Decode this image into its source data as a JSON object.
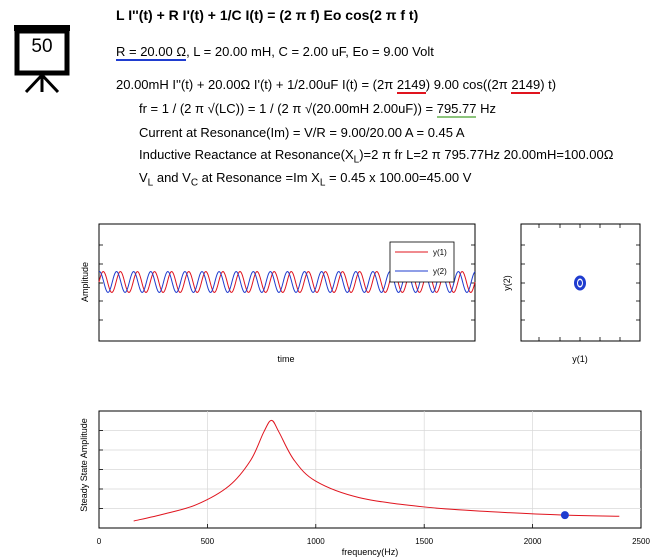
{
  "badge": {
    "number": "50"
  },
  "equation": {
    "title": "L I''(t) + R I'(t) + 1/C I(t) = (2 π f) Eo cos(2 π f t)",
    "params_r": "R = 20.00 Ω",
    "params_rest": ", L = 20.00 mH, C = 2.00 uF, Eo = 9.00 Volt",
    "line1_a": "20.00mH I''(t) + 20.00Ω I'(t) + 1/2.00uF I(t) = (2π ",
    "line1_f": "2149",
    "line1_b": ") 9.00 cos((2π ",
    "line1_f2": "2149",
    "line1_c": ") t)",
    "fr_a": "fr = 1 / (2 π √(LC)) = 1 / (2 π √(20.00mH 2.00uF)) = ",
    "fr_val": "795.77",
    "fr_unit": " Hz",
    "current": "Current at Resonance(Im) = V/R = 9.00/20.00 A = 0.45 A",
    "react_a": "Inductive Reactance at Resonance(X",
    "react_sub": "L",
    "react_b": ")=2 π fr L=2 π 795.77Hz 20.00mH=100.00Ω",
    "volt_v": "V",
    "volt_sub_l": "L",
    "volt_and": " and V",
    "volt_sub_c": "C",
    "volt_b": " at Resonance =Im X",
    "volt_sub_l2": "L",
    "volt_c": " = 0.45 x 100.00=45.00 V"
  },
  "colors": {
    "red": "#e0141e",
    "blue": "#1f3ccf",
    "green": "#8cc47c"
  },
  "chart_data": [
    {
      "type": "line",
      "title": "",
      "xlabel": "time",
      "ylabel": "Amplitude",
      "legend": {
        "position": "top-right",
        "entries": [
          "y(1)",
          "y(2)"
        ]
      },
      "series": [
        {
          "name": "y(1)",
          "color": "#e0141e",
          "cycles": 22,
          "amplitude": 0.18,
          "phase": 0.0
        },
        {
          "name": "y(2)",
          "color": "#1f3ccf",
          "cycles": 22,
          "amplitude": 0.18,
          "phase": 1.4
        }
      ]
    },
    {
      "type": "scatter",
      "xlabel": "y(1)",
      "ylabel": "y(2)",
      "description": "phase portrait, small closed orbit near center"
    },
    {
      "type": "line",
      "xlabel": "frequency(Hz)",
      "ylabel": "Steady State Amplitude",
      "xlim": [
        0,
        2500
      ],
      "xticks": [
        "0",
        "500",
        "1000",
        "1500",
        "2000",
        "2500"
      ],
      "resonance_hz": 795.77,
      "marker_hz": 2149,
      "x": [
        160,
        300,
        450,
        600,
        700,
        760,
        795.77,
        830,
        900,
        1000,
        1200,
        1500,
        1800,
        2149,
        2400
      ],
      "y": [
        0.06,
        0.12,
        0.2,
        0.36,
        0.58,
        0.82,
        0.92,
        0.82,
        0.58,
        0.4,
        0.26,
        0.18,
        0.14,
        0.11,
        0.1
      ]
    }
  ]
}
